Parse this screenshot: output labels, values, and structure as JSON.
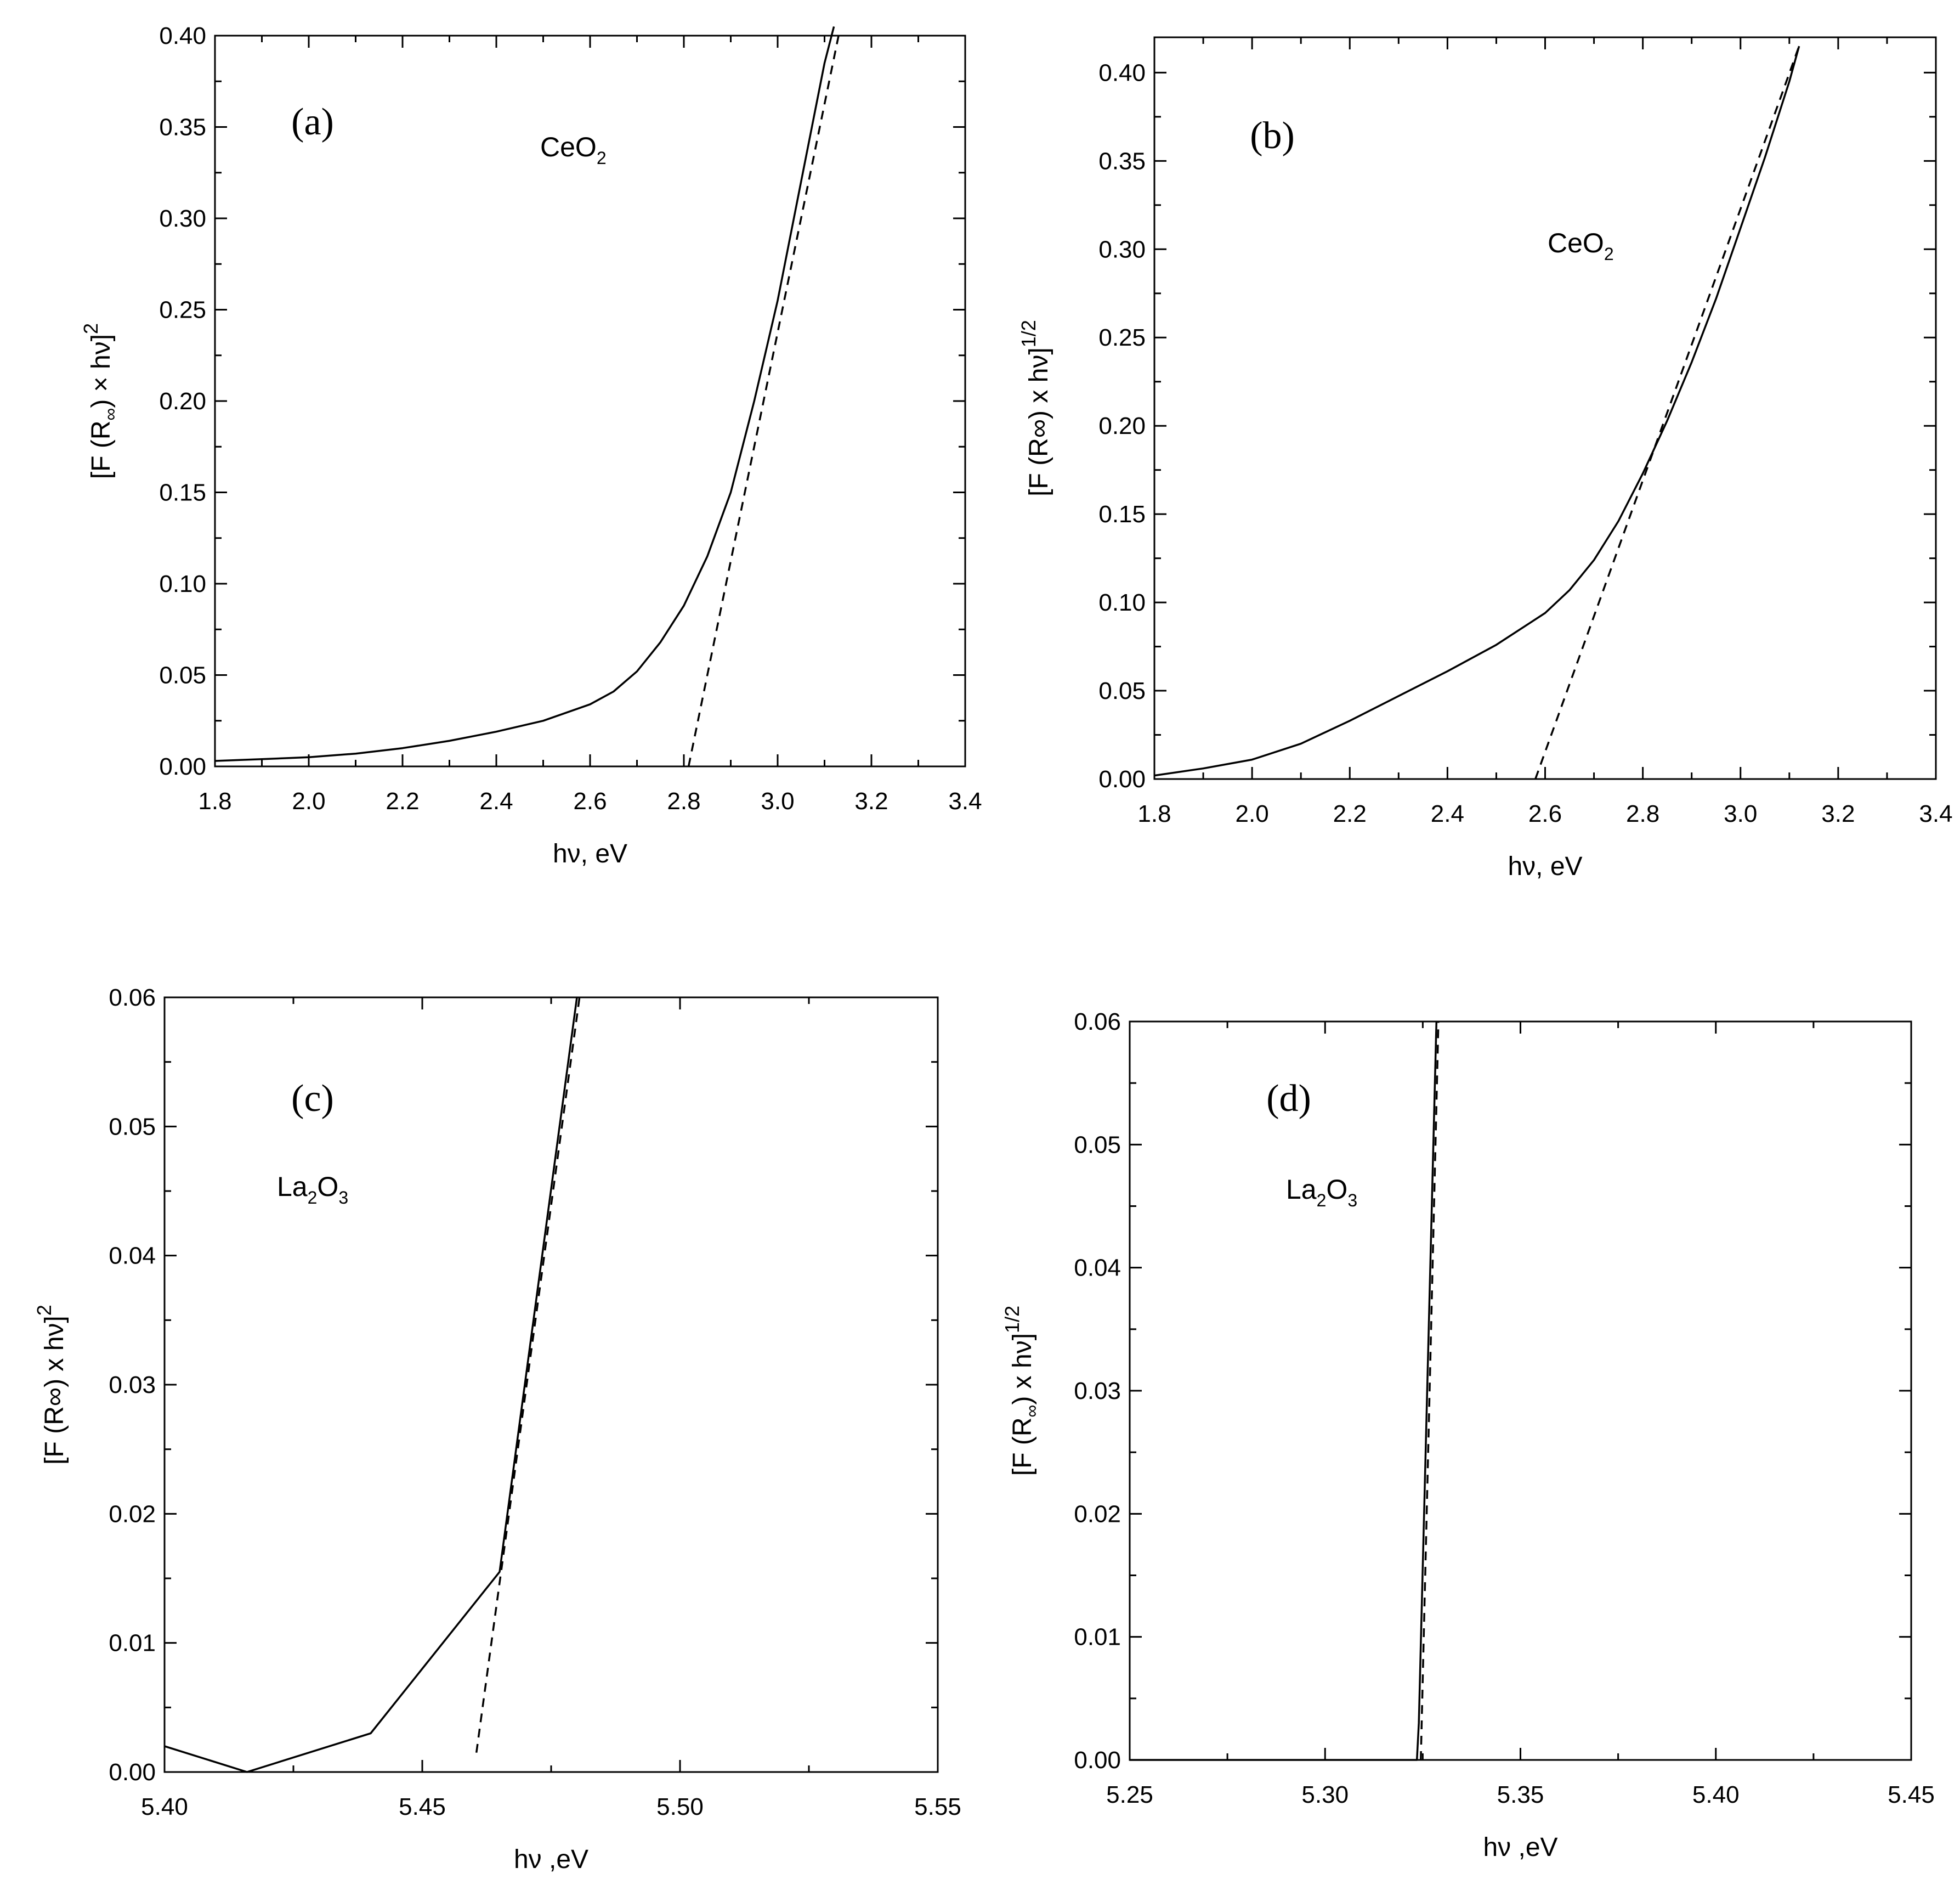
{
  "chart_data": [
    {
      "panel": "(a)",
      "type": "line",
      "compound": {
        "base": "CeO",
        "sub": "2"
      },
      "xlabel": "hν, eV",
      "ylabel": {
        "main": "[F (R",
        "sub": "∞",
        "rest": ") × hν]",
        "sup": "2"
      },
      "xlim": [
        1.8,
        3.4
      ],
      "ylim": [
        0.0,
        0.4
      ],
      "xticks": [
        "1.8",
        "2.0",
        "2.2",
        "2.4",
        "2.6",
        "2.8",
        "3.0",
        "3.2",
        "3.4"
      ],
      "yticks": [
        "0.00",
        "0.05",
        "0.10",
        "0.15",
        "0.20",
        "0.25",
        "0.30",
        "0.35",
        "0.40"
      ],
      "series": [
        {
          "style": "solid",
          "x": [
            1.8,
            1.9,
            2.0,
            2.1,
            2.2,
            2.3,
            2.4,
            2.5,
            2.6,
            2.65,
            2.7,
            2.75,
            2.8,
            2.85,
            2.9,
            2.95,
            3.0,
            3.05,
            3.1,
            3.12
          ],
          "y": [
            0.003,
            0.004,
            0.005,
            0.007,
            0.01,
            0.014,
            0.019,
            0.025,
            0.034,
            0.041,
            0.052,
            0.068,
            0.088,
            0.115,
            0.15,
            0.2,
            0.255,
            0.32,
            0.385,
            0.405
          ]
        },
        {
          "style": "dashed",
          "x": [
            2.81,
            3.13
          ],
          "y": [
            0.0,
            0.4
          ]
        }
      ]
    },
    {
      "panel": "(b)",
      "type": "line",
      "compound": {
        "base": "CeO",
        "sub": "2"
      },
      "xlabel": "hν, eV",
      "ylabel": {
        "main": "[F (R∞) x hν]",
        "sup": "1/2"
      },
      "xlim": [
        1.8,
        3.4
      ],
      "ylim": [
        0.0,
        0.42
      ],
      "xticks": [
        "1.8",
        "2.0",
        "2.2",
        "2.4",
        "2.6",
        "2.8",
        "3.0",
        "3.2",
        "3.4"
      ],
      "yticks": [
        "0.00",
        "0.05",
        "0.10",
        "0.15",
        "0.20",
        "0.25",
        "0.30",
        "0.35",
        "0.40"
      ],
      "series": [
        {
          "style": "solid",
          "x": [
            1.8,
            1.9,
            2.0,
            2.1,
            2.2,
            2.3,
            2.4,
            2.5,
            2.6,
            2.65,
            2.7,
            2.75,
            2.8,
            2.85,
            2.9,
            2.95,
            3.0,
            3.05,
            3.1,
            3.12
          ],
          "y": [
            0.002,
            0.006,
            0.011,
            0.02,
            0.033,
            0.047,
            0.061,
            0.076,
            0.094,
            0.107,
            0.124,
            0.146,
            0.173,
            0.203,
            0.236,
            0.272,
            0.312,
            0.352,
            0.395,
            0.415
          ]
        },
        {
          "style": "dashed",
          "x": [
            2.58,
            3.12
          ],
          "y": [
            0.0,
            0.415
          ]
        }
      ]
    },
    {
      "panel": "(c)",
      "type": "line",
      "compound": {
        "base1": "La",
        "sub1": "2",
        "base2": "O",
        "sub2": "3"
      },
      "xlabel": "hν ,eV",
      "ylabel": {
        "main": "[F (R∞) x hν]",
        "sup": "2"
      },
      "xlim": [
        5.4,
        5.55
      ],
      "ylim": [
        0.0,
        0.06
      ],
      "xticks": [
        "5.40",
        "5.45",
        "5.50",
        "5.55"
      ],
      "yticks": [
        "0.00",
        "0.01",
        "0.02",
        "0.03",
        "0.04",
        "0.05",
        "0.06"
      ],
      "series": [
        {
          "style": "solid",
          "x": [
            5.4,
            5.416,
            5.44,
            5.465,
            5.48
          ],
          "y": [
            0.002,
            0.0,
            0.003,
            0.0155,
            0.06
          ]
        },
        {
          "style": "dashed",
          "x": [
            5.4605,
            5.4805
          ],
          "y": [
            0.0015,
            0.06
          ]
        }
      ]
    },
    {
      "panel": "(d)",
      "type": "line",
      "compound": {
        "base1": "La",
        "sub1": "2",
        "base2": "O",
        "sub2": "3"
      },
      "xlabel": "hν ,eV",
      "ylabel": {
        "main": "[F (R",
        "sub": "∞",
        "rest": ") x hν]",
        "sup": "1/2"
      },
      "xlim": [
        5.25,
        5.45
      ],
      "ylim": [
        0.0,
        0.06
      ],
      "xticks": [
        "5.25",
        "5.30",
        "5.35",
        "5.40",
        "5.45"
      ],
      "yticks": [
        "0.00",
        "0.01",
        "0.02",
        "0.03",
        "0.04",
        "0.05",
        "0.06"
      ],
      "series": [
        {
          "style": "solid",
          "x": [
            5.25,
            5.3235,
            5.324,
            5.3285
          ],
          "y": [
            0.0,
            0.0,
            0.003,
            0.06
          ]
        },
        {
          "style": "dashed",
          "x": [
            5.3245,
            5.329
          ],
          "y": [
            0.0,
            0.06
          ]
        }
      ]
    }
  ]
}
